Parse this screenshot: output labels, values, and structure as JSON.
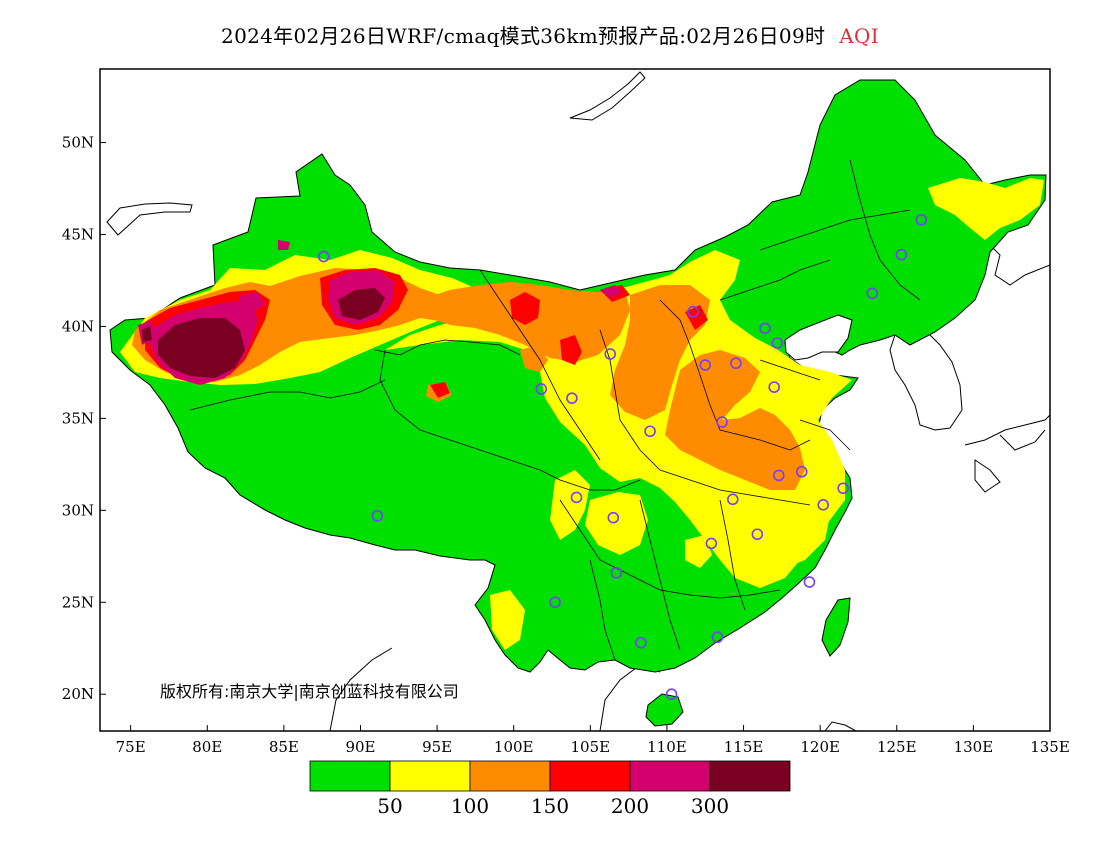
{
  "title": {
    "main": "2024年02月26日WRF/cmaq模式36km预报产品:02月26日09时",
    "variable": "AQI"
  },
  "copyright": "版权所有:南京大学|南京创蓝科技有限公司",
  "map": {
    "lon_range": [
      73,
      135
    ],
    "lat_range": [
      18,
      54
    ],
    "lon_ticks": [
      "75E",
      "80E",
      "85E",
      "90E",
      "95E",
      "100E",
      "105E",
      "110E",
      "115E",
      "120E",
      "125E",
      "130E",
      "135E"
    ],
    "lat_ticks": [
      "20N",
      "25N",
      "30N",
      "35N",
      "40N",
      "45N",
      "50N"
    ]
  },
  "legend": {
    "colors": [
      "#00e000",
      "#ffff00",
      "#ff8c00",
      "#ff0000",
      "#d4006e",
      "#7a0022"
    ],
    "labels": [
      "50",
      "100",
      "150",
      "200",
      "300"
    ]
  },
  "colors": {
    "good": "#00e000",
    "moderate": "#ffff00",
    "usg": "#ff8c00",
    "unhealthy": "#ff0000",
    "very_unhealthy": "#d4006e",
    "hazardous": "#7a0022",
    "station_ring": "#7a3cff"
  }
}
